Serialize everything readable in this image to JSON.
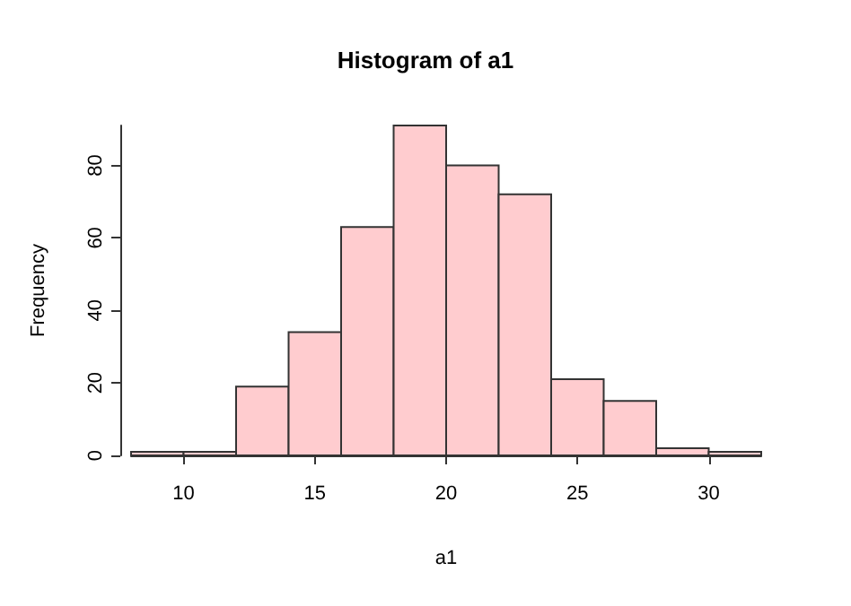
{
  "chart_data": {
    "type": "histogram",
    "title": "Histogram of a1",
    "xlabel": "a1",
    "ylabel": "Frequency",
    "bins": [
      8,
      10,
      12,
      14,
      16,
      18,
      20,
      22,
      24,
      26,
      28,
      30,
      32
    ],
    "values": [
      1,
      1,
      19,
      34,
      63,
      91,
      80,
      72,
      21,
      15,
      2,
      1
    ],
    "color": "#ffcccf",
    "xlim": [
      8,
      32
    ],
    "xticks": [
      10,
      15,
      20,
      25,
      30
    ],
    "ylim": [
      0,
      91
    ],
    "yticks": [
      0,
      20,
      40,
      60,
      80
    ],
    "grid": false
  }
}
